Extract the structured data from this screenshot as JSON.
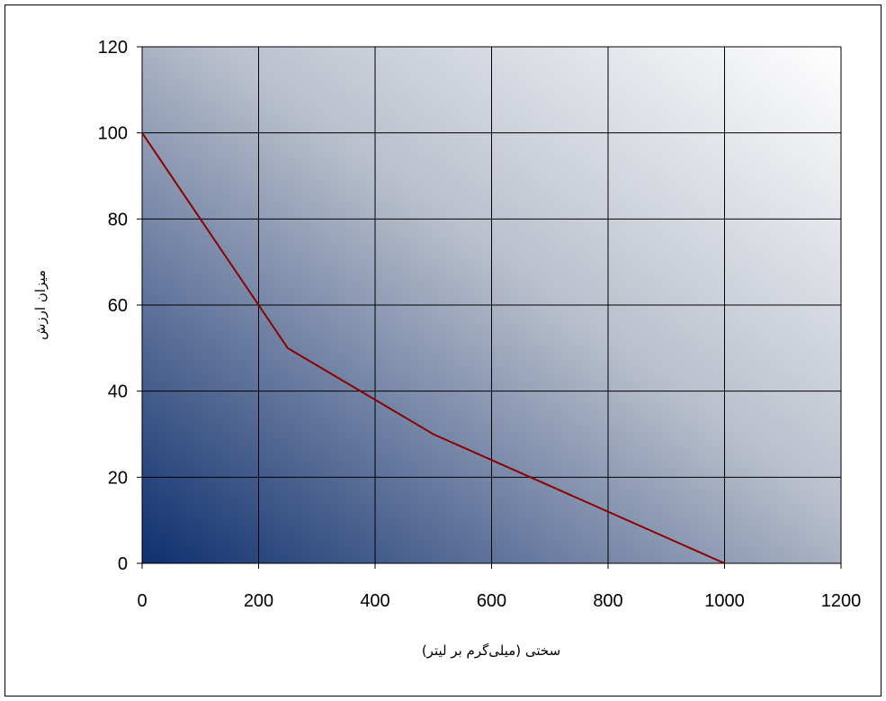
{
  "chart_data": {
    "type": "line",
    "title": "",
    "xlabel": "سختی (میلی‌گرم بر لیتر)",
    "ylabel": "میزان ارزش",
    "xlim": [
      0,
      1200
    ],
    "ylim": [
      0,
      120
    ],
    "x_ticks": [
      0,
      200,
      400,
      600,
      800,
      1000,
      1200
    ],
    "y_ticks": [
      0,
      20,
      40,
      60,
      80,
      100,
      120
    ],
    "grid": true,
    "legend": "none",
    "series": [
      {
        "x": [
          0,
          200,
          250,
          500,
          1000
        ],
        "y": [
          100,
          60,
          50,
          30,
          0
        ],
        "color": "#8b0000"
      }
    ],
    "colors": {
      "plot_gradient_dark": "#0f2f6e",
      "plot_gradient_light": "#ffffff",
      "grid": "#000000",
      "line": "#8b0000"
    }
  }
}
